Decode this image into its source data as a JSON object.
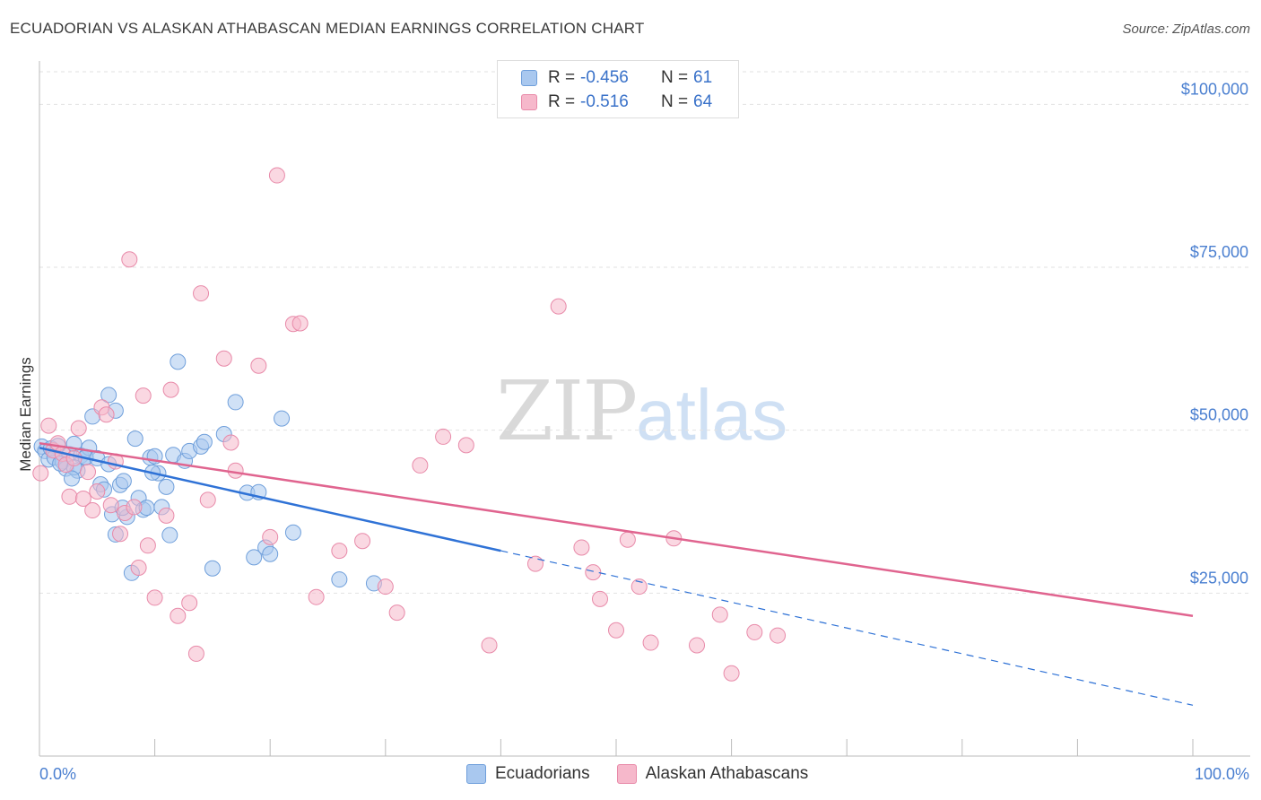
{
  "header": {
    "title": "ECUADORIAN VS ALASKAN ATHABASCAN MEDIAN EARNINGS CORRELATION CHART",
    "source": "Source: ZipAtlas.com"
  },
  "watermark": {
    "zip": "ZIP",
    "atlas": "atlas"
  },
  "legend": {
    "rows": [
      {
        "r_label": "R =",
        "r_value": "-0.456",
        "n_label": "N =",
        "n_value": "61",
        "color": "#a9c8ef",
        "stroke": "#6f9fdb"
      },
      {
        "r_label": "R =",
        "r_value": "-0.516",
        "n_label": "N =",
        "n_value": "64",
        "color": "#f6b8cb",
        "stroke": "#e88aa9"
      }
    ]
  },
  "bottom_legend": [
    {
      "label": "Ecuadorians",
      "color": "#a9c8ef",
      "stroke": "#6f9fdb"
    },
    {
      "label": "Alaskan Athabascans",
      "color": "#f6b8cb",
      "stroke": "#e88aa9"
    }
  ],
  "chart_data": {
    "type": "scatter",
    "title": "ECUADORIAN VS ALASKAN ATHABASCAN MEDIAN EARNINGS CORRELATION CHART",
    "xlabel": "",
    "ylabel": "Median Earnings",
    "xlim": [
      0,
      100
    ],
    "ylim": [
      0,
      105000
    ],
    "x_tick_labels": [
      "0.0%",
      "100.0%"
    ],
    "y_ticks": [
      25000,
      50000,
      75000,
      100000
    ],
    "y_tick_labels": [
      "$25,000",
      "$50,000",
      "$75,000",
      "$100,000"
    ],
    "grid": true,
    "legend_position": "top-center",
    "series": [
      {
        "name": "Ecuadorians",
        "color": "#a9c8ef",
        "stroke": "#6f9fdb",
        "line_color": "#2f72d6",
        "trend": {
          "x0": 0,
          "y0": 47300,
          "x1": 40,
          "y1": 31500,
          "dash_to_x": 100,
          "dash_to_y": 7800
        },
        "points": [
          [
            0.2,
            47500
          ],
          [
            0.5,
            46800
          ],
          [
            0.8,
            45500
          ],
          [
            1.0,
            47200
          ],
          [
            1.3,
            45800
          ],
          [
            1.6,
            47600
          ],
          [
            2.0,
            45200
          ],
          [
            2.3,
            44100
          ],
          [
            2.6,
            46300
          ],
          [
            3.0,
            47900
          ],
          [
            3.3,
            43800
          ],
          [
            3.6,
            46100
          ],
          [
            4.0,
            45900
          ],
          [
            4.3,
            47300
          ],
          [
            4.6,
            52100
          ],
          [
            4.0,
            45800
          ],
          [
            5.0,
            45700
          ],
          [
            5.3,
            41700
          ],
          [
            5.6,
            40900
          ],
          [
            6.0,
            44800
          ],
          [
            6.3,
            37100
          ],
          [
            6.6,
            34000
          ],
          [
            7.0,
            41600
          ],
          [
            7.3,
            42200
          ],
          [
            7.6,
            36700
          ],
          [
            8.0,
            28100
          ],
          [
            8.3,
            48700
          ],
          [
            8.6,
            39600
          ],
          [
            9.0,
            37800
          ],
          [
            9.3,
            38100
          ],
          [
            9.6,
            45800
          ],
          [
            10.0,
            46000
          ],
          [
            10.3,
            43400
          ],
          [
            10.6,
            38200
          ],
          [
            11.0,
            41300
          ],
          [
            11.3,
            33900
          ],
          [
            11.6,
            46200
          ],
          [
            12.0,
            60500
          ],
          [
            12.6,
            45300
          ],
          [
            13.0,
            46800
          ],
          [
            14.0,
            47500
          ],
          [
            14.3,
            48200
          ],
          [
            15.0,
            28800
          ],
          [
            16.0,
            49400
          ],
          [
            17.0,
            54300
          ],
          [
            18.0,
            40400
          ],
          [
            18.6,
            30500
          ],
          [
            19.0,
            40500
          ],
          [
            19.6,
            32000
          ],
          [
            20.0,
            31000
          ],
          [
            21.0,
            51800
          ],
          [
            22.0,
            34300
          ],
          [
            26.0,
            27100
          ],
          [
            29.0,
            26500
          ],
          [
            3.0,
            44300
          ],
          [
            2.8,
            42600
          ],
          [
            6.0,
            55400
          ],
          [
            6.6,
            53000
          ],
          [
            9.8,
            43500
          ],
          [
            7.2,
            38100
          ],
          [
            1.8,
            44900
          ]
        ]
      },
      {
        "name": "Alaskan Athabascans",
        "color": "#f6b8cb",
        "stroke": "#e88aa9",
        "line_color": "#e0648f",
        "trend": {
          "x0": 0,
          "y0": 48000,
          "x1": 100,
          "y1": 21500
        },
        "points": [
          [
            0.1,
            43400
          ],
          [
            0.8,
            50700
          ],
          [
            1.2,
            46900
          ],
          [
            1.6,
            48000
          ],
          [
            2.0,
            46400
          ],
          [
            2.3,
            44700
          ],
          [
            2.6,
            39800
          ],
          [
            3.0,
            45700
          ],
          [
            3.4,
            50300
          ],
          [
            3.8,
            39500
          ],
          [
            4.2,
            43600
          ],
          [
            4.6,
            37700
          ],
          [
            5.0,
            40600
          ],
          [
            5.4,
            53500
          ],
          [
            5.8,
            52400
          ],
          [
            6.2,
            38500
          ],
          [
            6.6,
            45200
          ],
          [
            7.0,
            34100
          ],
          [
            7.4,
            37300
          ],
          [
            7.8,
            76200
          ],
          [
            8.2,
            38200
          ],
          [
            8.6,
            28900
          ],
          [
            9.0,
            55300
          ],
          [
            9.4,
            32300
          ],
          [
            10.0,
            24300
          ],
          [
            11.0,
            36900
          ],
          [
            11.4,
            56200
          ],
          [
            12.0,
            21500
          ],
          [
            13.0,
            23500
          ],
          [
            13.6,
            15700
          ],
          [
            14.0,
            71000
          ],
          [
            14.6,
            39300
          ],
          [
            16.0,
            61000
          ],
          [
            16.6,
            48100
          ],
          [
            17.0,
            43800
          ],
          [
            19.0,
            59900
          ],
          [
            20.0,
            33600
          ],
          [
            20.6,
            89100
          ],
          [
            22.0,
            66300
          ],
          [
            22.6,
            66400
          ],
          [
            24.0,
            24400
          ],
          [
            26.0,
            31500
          ],
          [
            28.0,
            33000
          ],
          [
            30.0,
            26000
          ],
          [
            31.0,
            22000
          ],
          [
            33.0,
            44600
          ],
          [
            35.0,
            49000
          ],
          [
            37.0,
            47700
          ],
          [
            39.0,
            17000
          ],
          [
            43.0,
            29500
          ],
          [
            45.0,
            69000
          ],
          [
            47.0,
            32000
          ],
          [
            48.0,
            28200
          ],
          [
            48.6,
            24100
          ],
          [
            50.0,
            19300
          ],
          [
            51.0,
            33200
          ],
          [
            52.0,
            26000
          ],
          [
            53.0,
            17400
          ],
          [
            55.0,
            33400
          ],
          [
            57.0,
            17000
          ],
          [
            59.0,
            21700
          ],
          [
            60.0,
            12700
          ],
          [
            62.0,
            19000
          ],
          [
            64.0,
            18500
          ]
        ]
      }
    ]
  }
}
